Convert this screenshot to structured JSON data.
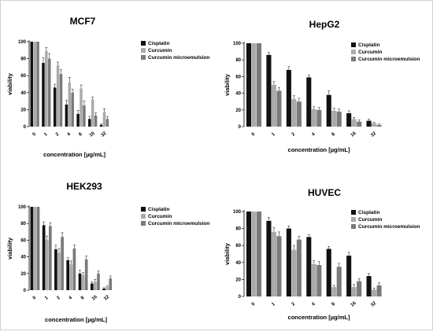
{
  "chart_data": [
    {
      "type": "bar",
      "title": "MCF7",
      "xlabel": "concentration [µg/mL]",
      "ylabel": "viability",
      "ylim": [
        0,
        100
      ],
      "yticks": [
        "0",
        "20",
        "40",
        "60",
        "80",
        "100"
      ],
      "categories": [
        "0",
        "1",
        "2",
        "4",
        "8",
        "16",
        "32"
      ],
      "legend_position": "top-right",
      "series": [
        {
          "name": "Cisplatin",
          "color": "#111111",
          "values": [
            100,
            75,
            46,
            26,
            15,
            9,
            2
          ],
          "errors": [
            0,
            6,
            4,
            5,
            4,
            3,
            1
          ]
        },
        {
          "name": "Curcumin",
          "color": "#aaaaaa",
          "values": [
            100,
            89,
            72,
            52,
            45,
            32,
            17
          ],
          "errors": [
            0,
            4,
            4,
            6,
            4,
            3,
            4
          ]
        },
        {
          "name": "Curcumin microemulsion",
          "color": "#7a7a7a",
          "values": [
            100,
            80,
            62,
            40,
            25,
            13,
            9
          ],
          "errors": [
            0,
            6,
            5,
            4,
            5,
            3,
            3
          ]
        }
      ]
    },
    {
      "type": "bar",
      "title": "HepG2",
      "xlabel": "concentration [µg/mL]",
      "ylabel": "viability",
      "ylim": [
        0,
        100
      ],
      "yticks": [
        "0",
        "20",
        "40",
        "60",
        "80",
        "100"
      ],
      "categories": [
        "0",
        "1",
        "2",
        "4",
        "8",
        "16",
        "32"
      ],
      "legend_position": "top-right",
      "series": [
        {
          "name": "Cisplatin",
          "color": "#111111",
          "values": [
            100,
            86,
            68,
            59,
            38,
            16,
            7
          ],
          "errors": [
            0,
            3,
            4,
            3,
            5,
            3,
            2
          ]
        },
        {
          "name": "Curcumin",
          "color": "#aaaaaa",
          "values": [
            100,
            50,
            33,
            21,
            19,
            9,
            4
          ],
          "errors": [
            0,
            4,
            4,
            3,
            3,
            2,
            1
          ]
        },
        {
          "name": "Curcumin microemulsion",
          "color": "#7a7a7a",
          "values": [
            100,
            43,
            30,
            20,
            18,
            6,
            2
          ],
          "errors": [
            0,
            4,
            4,
            3,
            3,
            2,
            1
          ]
        }
      ]
    },
    {
      "type": "bar",
      "title": "HEK293",
      "xlabel": "concentration [µg/mL]",
      "ylabel": "viability",
      "ylim": [
        0,
        100
      ],
      "yticks": [
        "0",
        "20",
        "40",
        "60",
        "80",
        "100"
      ],
      "categories": [
        "0",
        "1",
        "2",
        "4",
        "8",
        "16",
        "32"
      ],
      "legend_position": "top-right",
      "series": [
        {
          "name": "Cisplatin",
          "color": "#111111",
          "values": [
            100,
            78,
            49,
            36,
            20,
            8,
            2
          ],
          "errors": [
            0,
            4,
            5,
            3,
            4,
            2,
            1
          ]
        },
        {
          "name": "Curcumin",
          "color": "#aaaaaa",
          "values": [
            100,
            60,
            45,
            31,
            18,
            10,
            4
          ],
          "errors": [
            0,
            5,
            5,
            4,
            3,
            3,
            1
          ]
        },
        {
          "name": "Curcumin microemulsion",
          "color": "#7a7a7a",
          "values": [
            100,
            77,
            64,
            50,
            37,
            20,
            14
          ],
          "errors": [
            0,
            4,
            5,
            4,
            4,
            3,
            3
          ]
        }
      ]
    },
    {
      "type": "bar",
      "title": "HUVEC",
      "xlabel": "concentration [µg/mL]",
      "ylabel": "viability",
      "ylim": [
        0,
        100
      ],
      "yticks": [
        "0",
        "20",
        "40",
        "60",
        "80",
        "100"
      ],
      "categories": [
        "0",
        "1",
        "2",
        "4",
        "8",
        "16",
        "32"
      ],
      "legend_position": "top-right",
      "series": [
        {
          "name": "Cisplatin",
          "color": "#111111",
          "values": [
            100,
            89,
            80,
            70,
            56,
            48,
            24
          ],
          "errors": [
            0,
            4,
            3,
            3,
            3,
            4,
            3
          ]
        },
        {
          "name": "Curcumin",
          "color": "#aaaaaa",
          "values": [
            100,
            76,
            55,
            38,
            11,
            11,
            8
          ],
          "errors": [
            0,
            5,
            5,
            4,
            2,
            3,
            2
          ]
        },
        {
          "name": "Curcumin microemulsion",
          "color": "#7a7a7a",
          "values": [
            100,
            71,
            67,
            37,
            35,
            18,
            13
          ],
          "errors": [
            0,
            5,
            4,
            4,
            4,
            3,
            3
          ]
        }
      ]
    }
  ]
}
